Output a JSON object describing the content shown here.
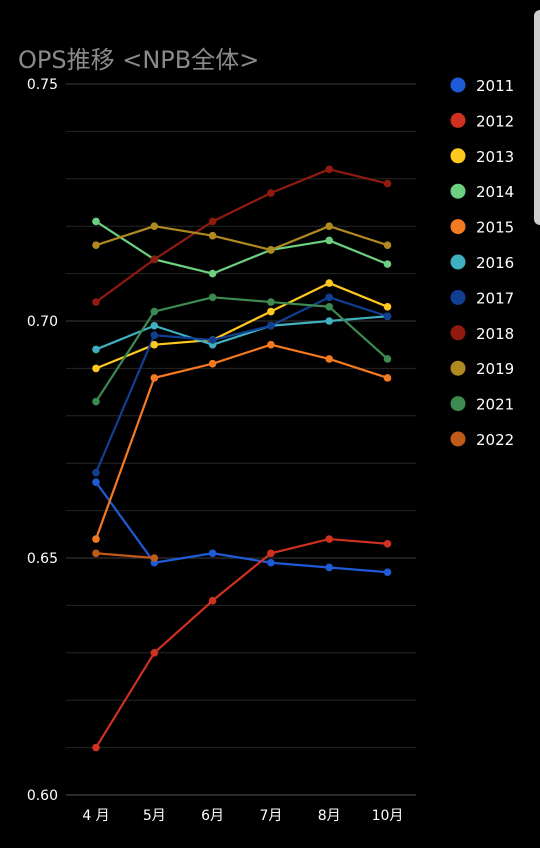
{
  "chart_data": {
    "type": "line",
    "title": "OPS推移 <NPB全体>",
    "xlabel": "",
    "ylabel": "",
    "categories": [
      "4 月",
      "5月",
      "6月",
      "7月",
      "8月",
      "10月"
    ],
    "ylim": [
      0.6,
      0.75
    ],
    "yticks": [
      "0.75",
      "0.70",
      "0.65",
      "0.60"
    ],
    "ytick_values": [
      0.75,
      0.7,
      0.65,
      0.6
    ],
    "grid": true,
    "legend_position": "right",
    "series": [
      {
        "name": "2011",
        "color": "#1f5bd6",
        "values": [
          0.666,
          0.649,
          0.651,
          0.649,
          0.648,
          0.647
        ]
      },
      {
        "name": "2012",
        "color": "#d03020",
        "values": [
          0.61,
          0.63,
          0.641,
          0.651,
          0.654,
          0.653
        ]
      },
      {
        "name": "2013",
        "color": "#ffc820",
        "values": [
          0.69,
          0.695,
          0.696,
          0.702,
          0.708,
          0.703
        ]
      },
      {
        "name": "2014",
        "color": "#6cd080",
        "values": [
          0.721,
          0.713,
          0.71,
          0.715,
          0.717,
          0.712
        ]
      },
      {
        "name": "2015",
        "color": "#f37a20",
        "values": [
          0.654,
          0.688,
          0.691,
          0.695,
          0.692,
          0.688
        ]
      },
      {
        "name": "2016",
        "color": "#3fb0c0",
        "values": [
          0.694,
          0.699,
          0.695,
          0.699,
          0.7,
          0.701
        ]
      },
      {
        "name": "2017",
        "color": "#123e92",
        "values": [
          0.668,
          0.697,
          0.696,
          0.699,
          0.705,
          0.701
        ]
      },
      {
        "name": "2018",
        "color": "#8e1a10",
        "values": [
          0.704,
          0.713,
          0.721,
          0.727,
          0.732,
          0.729
        ]
      },
      {
        "name": "2019",
        "color": "#b08a20",
        "values": [
          0.716,
          0.72,
          0.718,
          0.715,
          0.72,
          0.716
        ]
      },
      {
        "name": "2021",
        "color": "#3c8a50",
        "values": [
          0.683,
          0.702,
          0.705,
          0.704,
          0.703,
          0.692
        ]
      },
      {
        "name": "2022",
        "color": "#c05a18",
        "values": [
          0.651,
          0.65,
          null,
          null,
          null,
          null
        ]
      }
    ]
  }
}
